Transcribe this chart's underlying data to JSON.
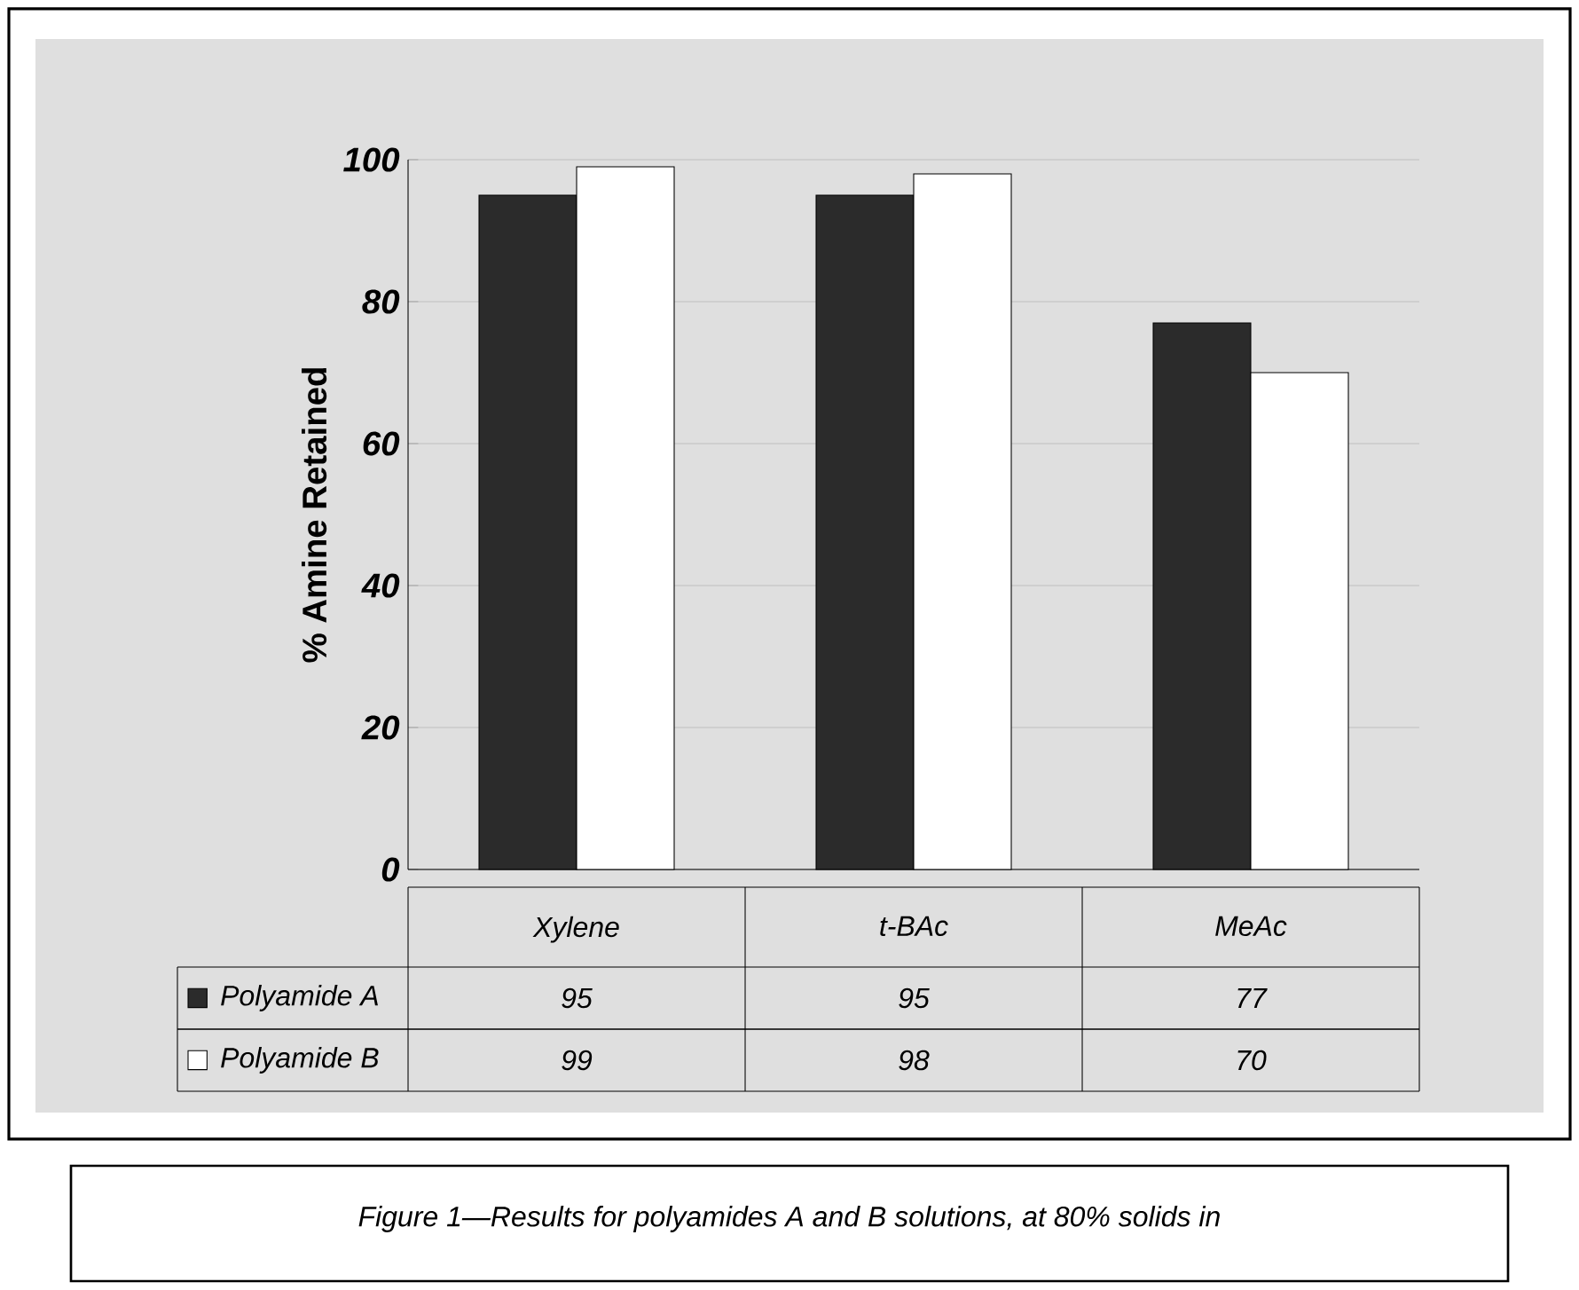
{
  "chart_data": {
    "type": "bar",
    "ylabel": "% Amine Retained",
    "categories": [
      "Xylene",
      "t-BAc",
      "MeAc"
    ],
    "series": [
      {
        "name": "Polyamide A",
        "color": "#2b2b2b",
        "values": [
          95,
          95,
          77
        ]
      },
      {
        "name": "Polyamide B",
        "color": "#ffffff",
        "values": [
          99,
          98,
          70
        ]
      }
    ],
    "ylim": [
      0,
      100
    ],
    "yticks": [
      0,
      20,
      40,
      60,
      80,
      100
    ],
    "grid": "y",
    "legend": "bottom",
    "data_labels": true,
    "annotations": [
      "Figure 1—Results for polyamides A and B solutions, at 80% solids in"
    ]
  }
}
